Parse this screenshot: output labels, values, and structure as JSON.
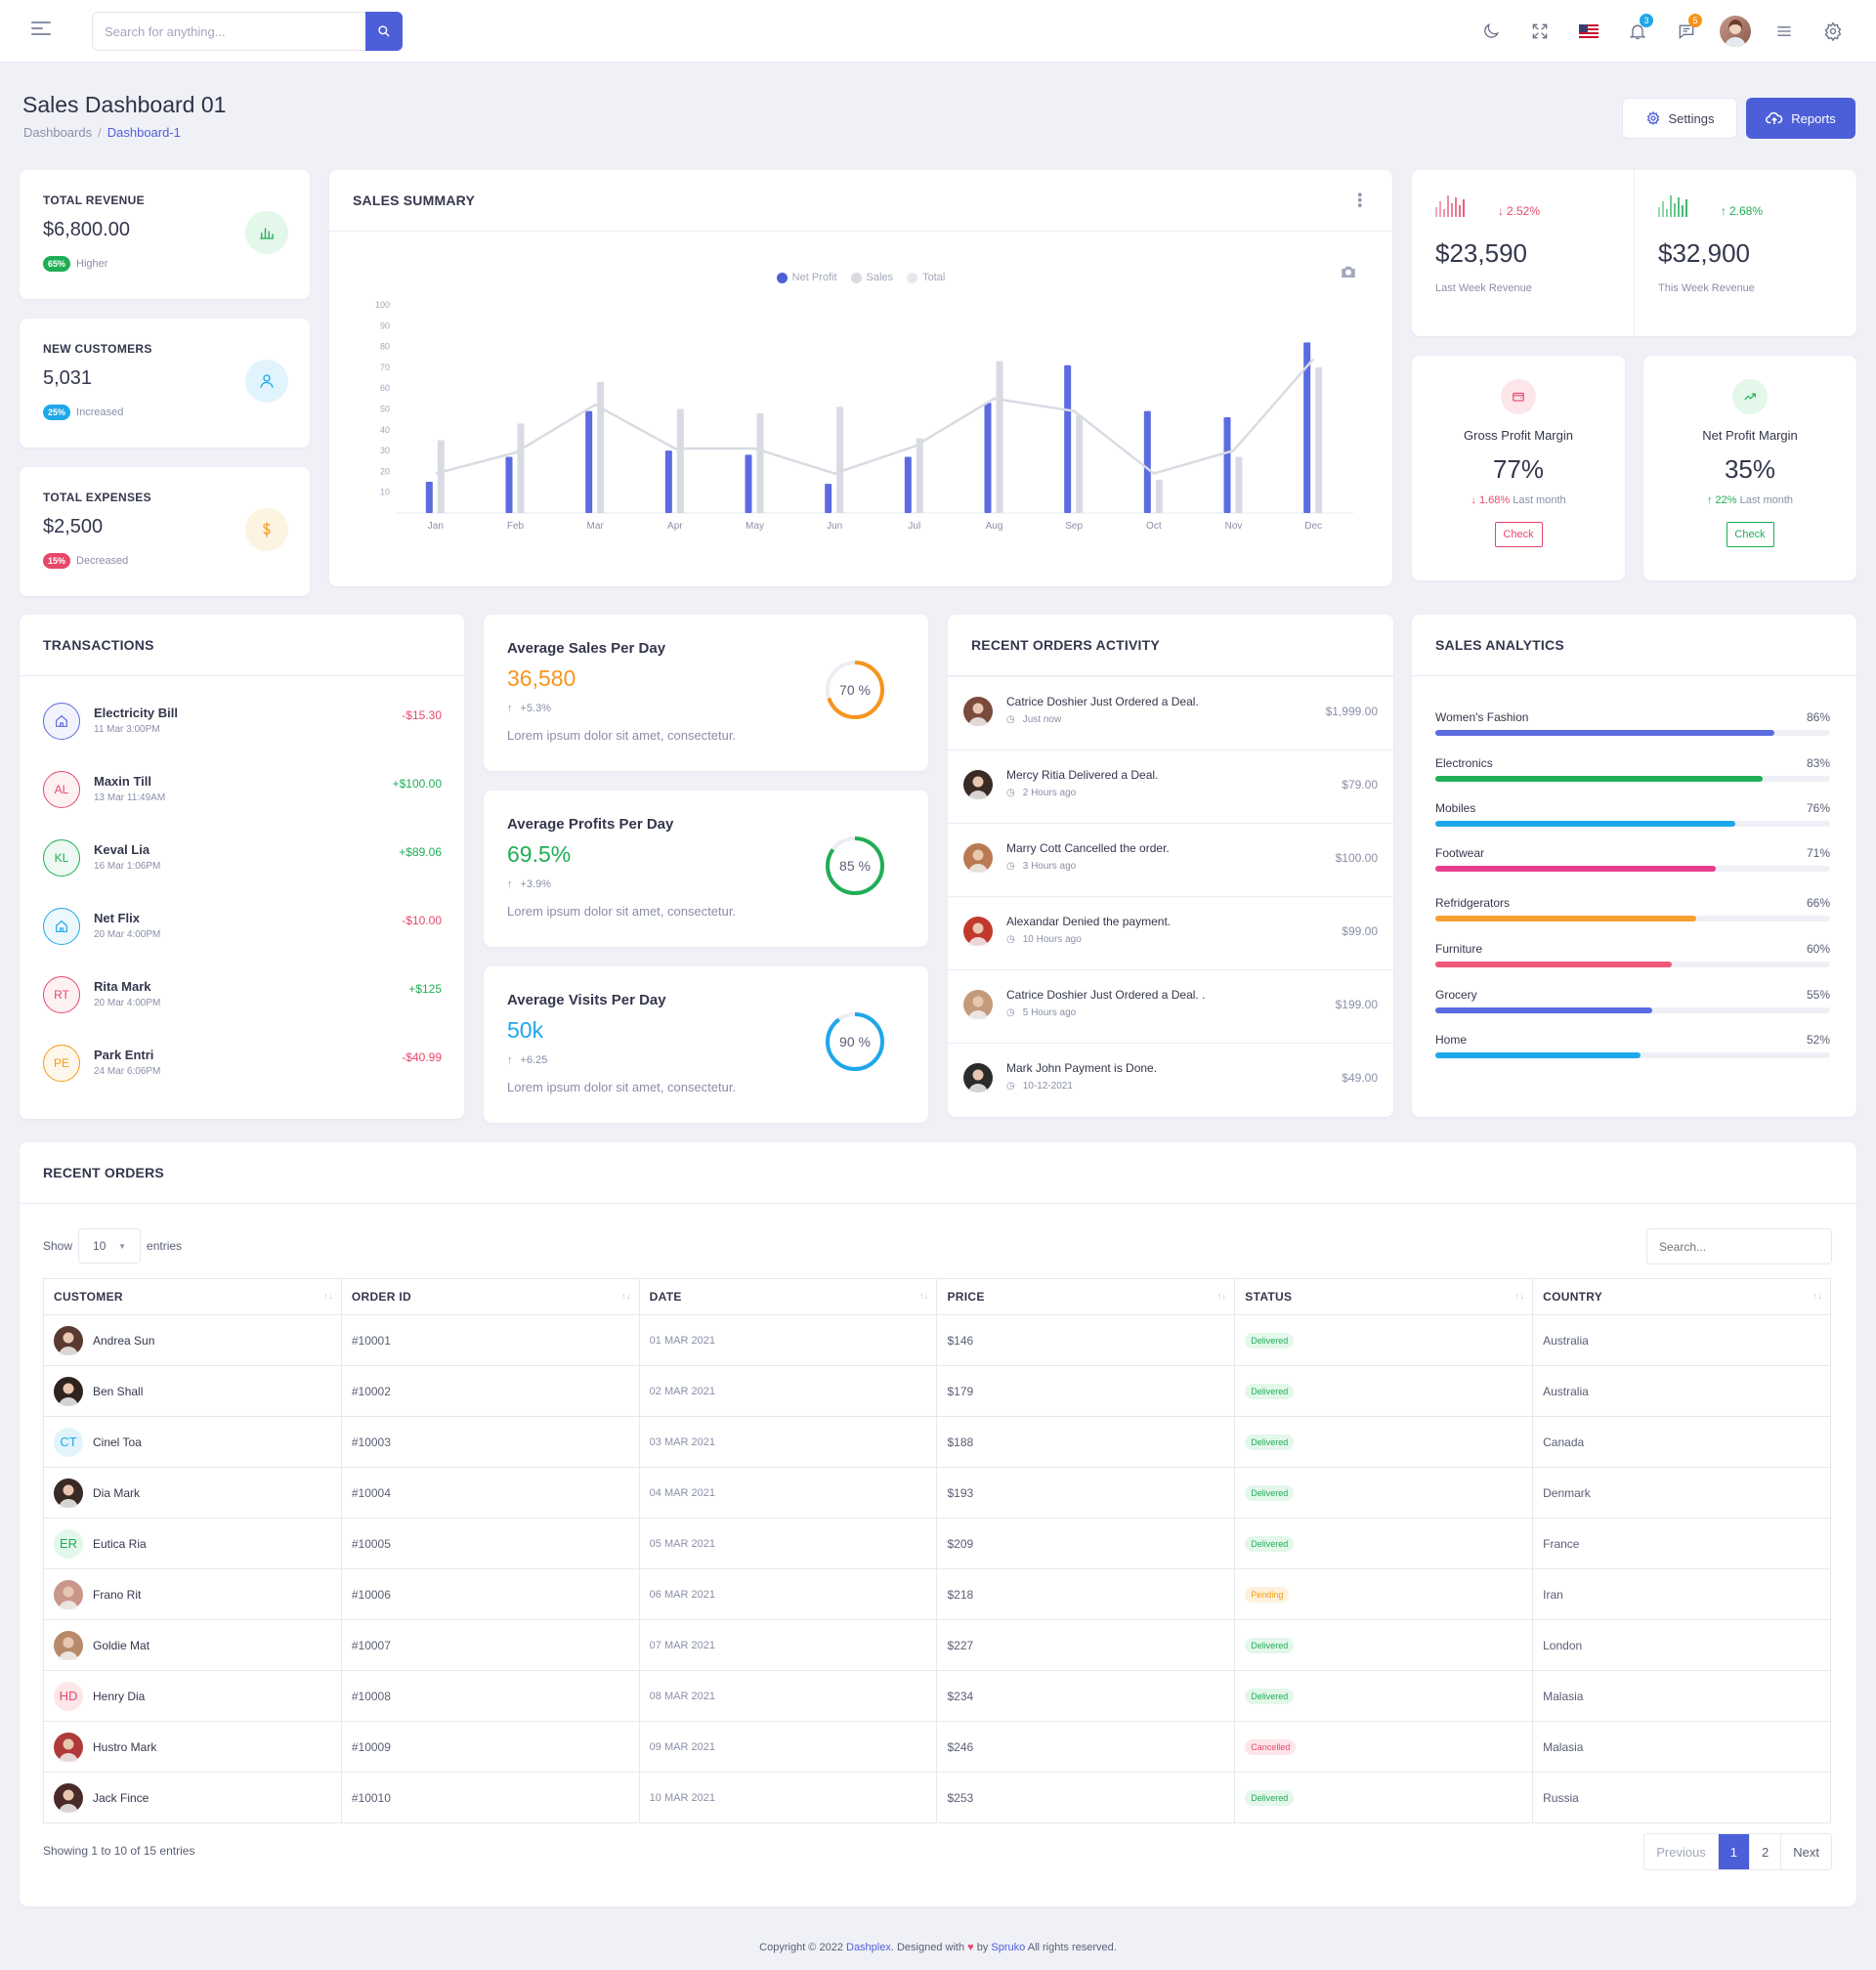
{
  "topbar": {
    "search_placeholder": "Search for anything...",
    "notif_badge": "3",
    "msg_badge": "5"
  },
  "header": {
    "title": "Sales Dashboard 01",
    "crumb_root": "Dashboards",
    "crumb_sep": "/",
    "crumb_active": "Dashboard-1",
    "settings_label": "Settings",
    "reports_label": "Reports"
  },
  "stats": [
    {
      "label": "TOTAL REVENUE",
      "value": "$6,800.00",
      "pill": "65%",
      "note": "Higher",
      "color": "#1fae55",
      "bg": "#e3f7ea",
      "icon": "bar-chart-icon"
    },
    {
      "label": "NEW CUSTOMERS",
      "value": "5,031",
      "pill": "25%",
      "note": "Increased",
      "color": "#1ea7ea",
      "bg": "#e1f4fd",
      "icon": "user-icon"
    },
    {
      "label": "TOTAL EXPENSES",
      "value": "$2,500",
      "pill": "15%",
      "note": "Decreased",
      "color": "#e8476a",
      "bg": "#fdf3e1",
      "icon": "dollar-icon"
    }
  ],
  "sales_summary": {
    "title": "SALES SUMMARY",
    "legend": [
      "Net Profit",
      "Sales",
      "Total"
    ]
  },
  "chart_data": {
    "type": "bar",
    "categories": [
      "Jan",
      "Feb",
      "Mar",
      "Apr",
      "May",
      "Jun",
      "Jul",
      "Aug",
      "Sep",
      "Oct",
      "Nov",
      "Dec"
    ],
    "series": [
      {
        "name": "Net Profit",
        "type": "bar",
        "color": "#5b6be0",
        "values": [
          15,
          27,
          49,
          30,
          28,
          14,
          27,
          53,
          71,
          49,
          46,
          82
        ]
      },
      {
        "name": "Sales",
        "type": "bar",
        "color": "#d9dbe3",
        "values": [
          35,
          43,
          63,
          50,
          48,
          51,
          36,
          73,
          47,
          16,
          27,
          70
        ]
      },
      {
        "name": "Total",
        "type": "line",
        "color": "#d9dbe3",
        "values": [
          19,
          29,
          52,
          31,
          31,
          19,
          32,
          55,
          49,
          19,
          30,
          74
        ]
      }
    ],
    "ylim": [
      0,
      100
    ],
    "yticks": [
      10,
      20,
      30,
      40,
      50,
      60,
      70,
      80,
      90,
      100
    ]
  },
  "week_revenue": [
    {
      "value": "$23,590",
      "label": "Last Week Revenue",
      "change": "2.52%",
      "dir": "down",
      "color": "#e8476a"
    },
    {
      "value": "$32,900",
      "label": "This Week Revenue",
      "change": "2.68%",
      "dir": "up",
      "color": "#1fae55"
    }
  ],
  "margins": [
    {
      "title": "Gross Profit Margin",
      "value": "77%",
      "change": "1.68%",
      "note": "Last month",
      "dir": "down",
      "color": "#e8476a",
      "button": "Check"
    },
    {
      "title": "Net Profit Margin",
      "value": "35%",
      "change": "22%",
      "note": "Last month",
      "dir": "up",
      "color": "#1fae55",
      "button": "Check"
    }
  ],
  "transactions": {
    "title": "TRANSACTIONS",
    "items": [
      {
        "initials": "",
        "name": "Electricity Bill",
        "date": "11 Mar 3:00PM",
        "amount": "-$15.30",
        "color": "#5b6be0"
      },
      {
        "initials": "AL",
        "name": "Maxin Till",
        "date": "13 Mar 11:49AM",
        "amount": "+$100.00",
        "color": "#e8476a"
      },
      {
        "initials": "KL",
        "name": "Keval Lia",
        "date": "16 Mar 1:06PM",
        "amount": "+$89.06",
        "color": "#1fae55"
      },
      {
        "initials": "",
        "name": "Net Flix",
        "date": "20 Mar 4:00PM",
        "amount": "-$10.00",
        "color": "#1ea7ea"
      },
      {
        "initials": "RT",
        "name": "Rita Mark",
        "date": "20 Mar 4:00PM",
        "amount": "+$125",
        "color": "#e8476a"
      },
      {
        "initials": "PE",
        "name": "Park Entri",
        "date": "24 Mar 6:06PM",
        "amount": "-$40.99",
        "color": "#f39c12"
      }
    ]
  },
  "averages": [
    {
      "title": "Average Sales Per Day",
      "value": "36,580",
      "change": "+5.3%",
      "desc": "Lorem ipsum dolor sit amet, consectetur.",
      "pct": 70,
      "pct_label": "70 %",
      "color": "#f7941d"
    },
    {
      "title": "Average Profits Per Day",
      "value": "69.5%",
      "change": "+3.9%",
      "desc": "Lorem ipsum dolor sit amet, consectetur.",
      "pct": 85,
      "pct_label": "85 %",
      "color": "#1fae55"
    },
    {
      "title": "Average Visits Per Day",
      "value": "50k",
      "change": "+6.25",
      "desc": "Lorem ipsum dolor sit amet, consectetur.",
      "pct": 90,
      "pct_label": "90 %",
      "color": "#1ea7ea"
    }
  ],
  "recent_activity": {
    "title": "RECENT ORDERS ACTIVITY",
    "items": [
      {
        "text": "Catrice Doshier Just Ordered a Deal.",
        "time": "Just now",
        "amount": "$1,999.00",
        "avatar": "#7a4a3c"
      },
      {
        "text": "Mercy Ritia Delivered a Deal.",
        "time": "2 Hours ago",
        "amount": "$79.00",
        "avatar": "#3a2a26"
      },
      {
        "text": "Marry Cott Cancelled the order.",
        "time": "3 Hours ago",
        "amount": "$100.00",
        "avatar": "#b97a52"
      },
      {
        "text": "Alexandar Denied the payment.",
        "time": "10 Hours ago",
        "amount": "$99.00",
        "avatar": "#c0392b"
      },
      {
        "text": "Catrice Doshier Just Ordered a Deal. .",
        "time": "5 Hours ago",
        "amount": "$199.00",
        "avatar": "#c49a7a"
      },
      {
        "text": "Mark John Payment is Done.",
        "time": "10-12-2021",
        "amount": "$49.00",
        "avatar": "#2b2b2b"
      }
    ]
  },
  "sales_analytics": {
    "title": "SALES ANALYTICS",
    "items": [
      {
        "name": "Women's Fashion",
        "value": "86%",
        "pct": 86,
        "color": "#5b6be0"
      },
      {
        "name": "Electronics",
        "value": "83%",
        "pct": 83,
        "color": "#1fae55"
      },
      {
        "name": "Mobiles",
        "value": "76%",
        "pct": 76,
        "color": "#1ea7ea"
      },
      {
        "name": "Footwear",
        "value": "71%",
        "pct": 71,
        "color": "#e83e8c"
      },
      {
        "name": "Refridgerators",
        "value": "66%",
        "pct": 66,
        "color": "#f7a030"
      },
      {
        "name": "Furniture",
        "value": "60%",
        "pct": 60,
        "color": "#f0587a"
      },
      {
        "name": "Grocery",
        "value": "55%",
        "pct": 55,
        "color": "#5b6be0"
      },
      {
        "name": "Home",
        "value": "52%",
        "pct": 52,
        "color": "#1ea7ea"
      }
    ]
  },
  "recent_orders": {
    "title": "RECENT ORDERS",
    "show_label": "Show",
    "entries_value": "10",
    "entries_label": "entries",
    "search_placeholder": "Search...",
    "columns": [
      "CUSTOMER",
      "ORDER ID",
      "DATE",
      "PRICE",
      "STATUS",
      "COUNTRY"
    ],
    "rows": [
      {
        "customer": "Andrea Sun",
        "initials": "",
        "av": "#5a3a30",
        "id": "#10001",
        "date": "01 MAR 2021",
        "price": "$146",
        "status": "Delivered",
        "country": "Australia"
      },
      {
        "customer": "Ben Shall",
        "initials": "",
        "av": "#2f2320",
        "id": "#10002",
        "date": "02 MAR 2021",
        "price": "$179",
        "status": "Delivered",
        "country": "Australia"
      },
      {
        "customer": "Cinel Toa",
        "initials": "CT",
        "av": "#e1f4fd",
        "id": "#10003",
        "date": "03 MAR 2021",
        "price": "$188",
        "status": "Delivered",
        "country": "Canada"
      },
      {
        "customer": "Dia Mark",
        "initials": "",
        "av": "#3a2a26",
        "id": "#10004",
        "date": "04 MAR 2021",
        "price": "$193",
        "status": "Delivered",
        "country": "Denmark"
      },
      {
        "customer": "Eutica Ria",
        "initials": "ER",
        "av": "#e3f7ea",
        "id": "#10005",
        "date": "05 MAR 2021",
        "price": "$209",
        "status": "Delivered",
        "country": "France"
      },
      {
        "customer": "Frano Rit",
        "initials": "",
        "av": "#c9968a",
        "id": "#10006",
        "date": "06 MAR 2021",
        "price": "$218",
        "status": "Pending",
        "country": "Iran"
      },
      {
        "customer": "Goldie Mat",
        "initials": "",
        "av": "#b88a6a",
        "id": "#10007",
        "date": "07 MAR 2021",
        "price": "$227",
        "status": "Delivered",
        "country": "London"
      },
      {
        "customer": "Henry Dia",
        "initials": "HD",
        "av": "#fde6ea",
        "id": "#10008",
        "date": "08 MAR 2021",
        "price": "$234",
        "status": "Delivered",
        "country": "Malasia"
      },
      {
        "customer": "Hustro Mark",
        "initials": "",
        "av": "#b03a3a",
        "id": "#10009",
        "date": "09 MAR 2021",
        "price": "$246",
        "status": "Cancelled",
        "country": "Malasia"
      },
      {
        "customer": "Jack Fince",
        "initials": "",
        "av": "#4a2a28",
        "id": "#10010",
        "date": "10 MAR 2021",
        "price": "$253",
        "status": "Delivered",
        "country": "Russia"
      }
    ],
    "showing": "Showing 1 to 10 of 15 entries",
    "pager": [
      "Previous",
      "1",
      "2",
      "Next"
    ]
  },
  "footer": {
    "prefix": "Copyright © 2022",
    "brand": "Dashplex",
    "mid": ". Designed with",
    "by": "by",
    "author": "Spruko",
    "suffix": "All rights reserved."
  }
}
